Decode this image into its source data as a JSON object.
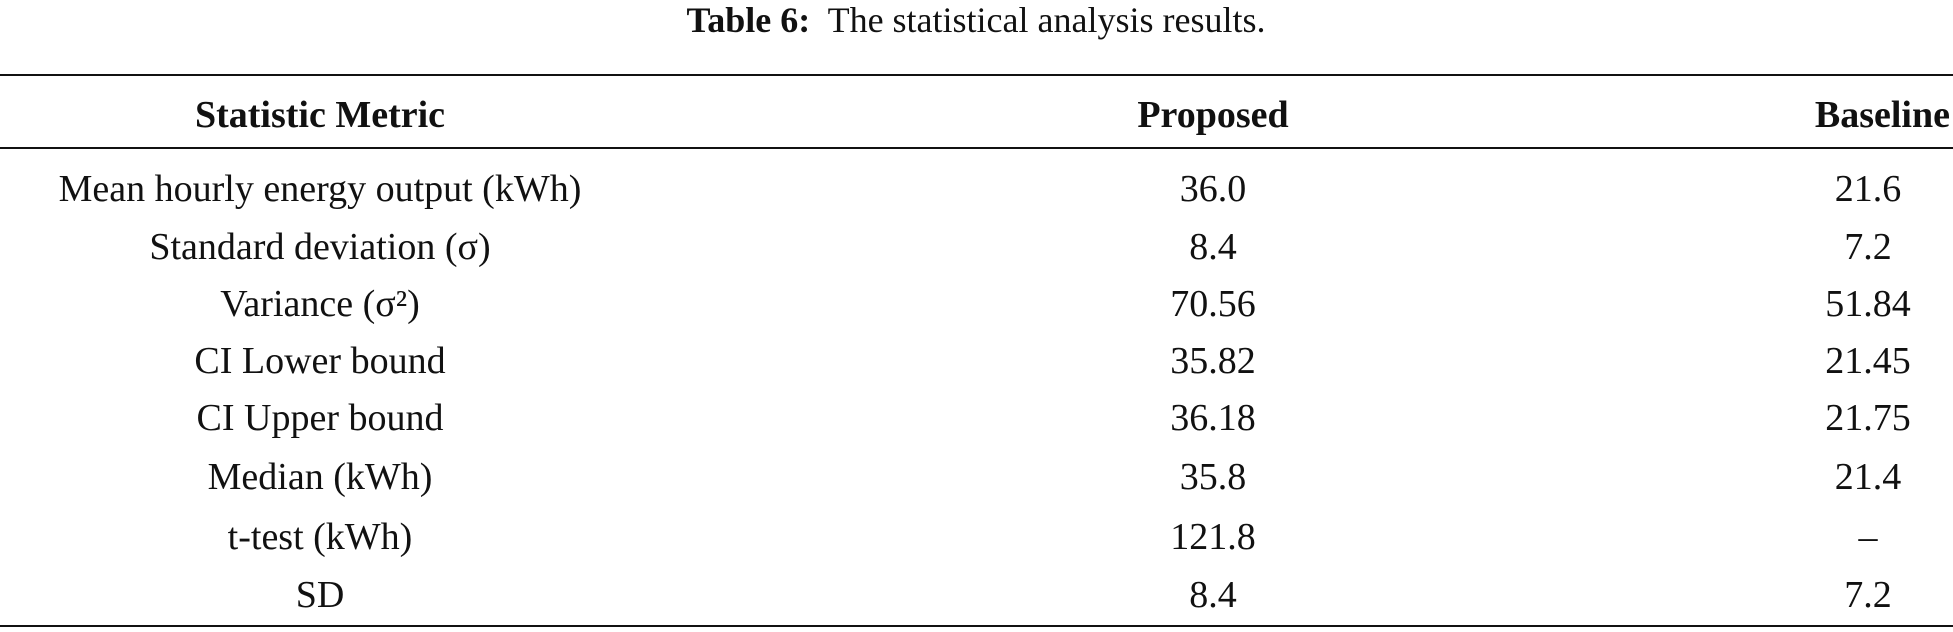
{
  "caption": {
    "label": "Table 6:",
    "text": "The statistical analysis results."
  },
  "table": {
    "headers": [
      "Statistic Metric",
      "Proposed",
      "Baseline"
    ],
    "rows": [
      [
        "Mean hourly energy output (kWh)",
        "36.0",
        "21.6"
      ],
      [
        "Standard deviation (σ)",
        "8.4",
        "7.2"
      ],
      [
        "Variance (σ²)",
        "70.56",
        "51.84"
      ],
      [
        "CI Lower bound",
        "35.82",
        "21.45"
      ],
      [
        "CI Upper bound",
        "36.18",
        "21.75"
      ],
      [
        "Median (kWh)",
        "35.8",
        "21.4"
      ],
      [
        "t-test (kWh)",
        "121.8",
        "–"
      ],
      [
        "SD",
        "8.4",
        "7.2"
      ]
    ]
  }
}
